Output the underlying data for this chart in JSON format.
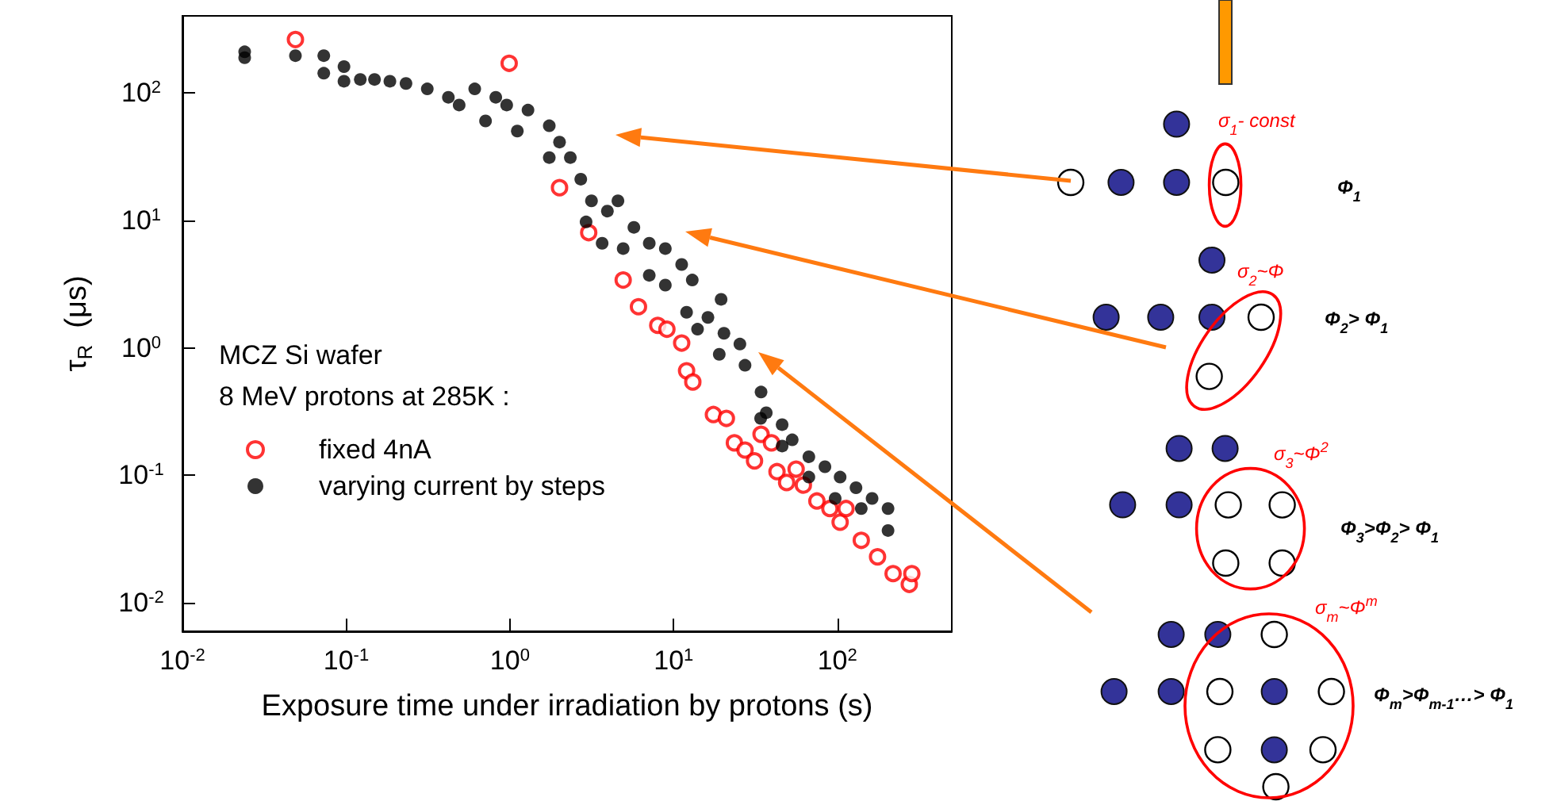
{
  "chart_data": {
    "type": "scatter",
    "xlabel": "Exposure time under irradiation by protons (s)",
    "ylabel": "τ$_{R}$  (μs)",
    "legend_title": "MCZ Si wafer\n8 MeV protons at 285K :",
    "legend": "bottom left",
    "marker": "circle",
    "log": "xy",
    "grid": false,
    "xlim": [
      0.01,
      500
    ],
    "ylim": [
      0.006,
      400
    ],
    "xticks": [
      {
        "value": 0.01,
        "label": "10$^{-2}$"
      },
      {
        "value": 0.1,
        "label": "10$^{-1}$"
      },
      {
        "value": 1,
        "label": "10$^{0}$"
      },
      {
        "value": 10,
        "label": "10$^{1}$"
      },
      {
        "value": 100,
        "label": "10$^{2}$"
      }
    ],
    "yticks": [
      {
        "value": 0.01,
        "label": "10$^{-2}$"
      },
      {
        "value": 0.1,
        "label": "10$^{-1}$"
      },
      {
        "value": 1,
        "label": "10$^{0}$"
      },
      {
        "value": 10,
        "label": "10$^{1}$"
      },
      {
        "value": 100,
        "label": "10$^{2}$"
      }
    ],
    "series": [
      {
        "name": "fixed 4nA",
        "color": "#ff0000",
        "x": [
          0.049,
          0.99,
          2.01,
          3.03,
          4.92,
          6.1,
          8.0,
          9.1,
          11.2,
          12.0,
          13.1,
          17.5,
          21.0,
          23.5,
          27.3,
          31.2,
          34.2,
          39.6,
          42.8,
          49,
          56,
          62,
          75,
          90,
          104,
          113,
          140,
          176,
          219,
          275,
          285
        ],
        "values": [
          261,
          170,
          18,
          8.0,
          3.4,
          2.1,
          1.5,
          1.4,
          1.09,
          0.66,
          0.54,
          0.3,
          0.28,
          0.18,
          0.158,
          0.13,
          0.21,
          0.18,
          0.107,
          0.088,
          0.112,
          0.084,
          0.063,
          0.055,
          0.043,
          0.055,
          0.031,
          0.023,
          0.017,
          0.014,
          0.017
        ]
      },
      {
        "name": "varying current by steps",
        "color": "#000000",
        "x": [
          0.024,
          0.024,
          0.049,
          0.073,
          0.073,
          0.097,
          0.097,
          0.122,
          0.149,
          0.185,
          0.232,
          0.313,
          0.421,
          0.49,
          0.61,
          0.71,
          0.82,
          0.956,
          1.11,
          1.29,
          1.74,
          2.01,
          1.74,
          2.34,
          2.71,
          3.15,
          2.92,
          3.94,
          4.57,
          3.66,
          4.92,
          5.72,
          7.1,
          8.9,
          7.1,
          8.9,
          11.2,
          13.0,
          12.0,
          14,
          16.2,
          19.5,
          20.3,
          19,
          25.4,
          27.3,
          34.2,
          34,
          36.8,
          46,
          46,
          53,
          67,
          67,
          84,
          97,
          104,
          130,
          140,
          163,
          204,
          204
        ],
        "values": [
          209,
          188,
          195,
          195,
          142,
          160,
          123,
          127,
          127,
          123,
          118,
          107,
          92,
          80,
          107,
          60,
          92,
          80,
          50,
          73,
          55,
          41,
          31,
          31,
          21,
          14.2,
          9.7,
          11.8,
          14.2,
          6.6,
          6.0,
          8.8,
          6.6,
          6.0,
          3.7,
          3.1,
          4.5,
          3.4,
          1.9,
          1.4,
          1.73,
          2.4,
          1.3,
          0.89,
          1.07,
          0.73,
          0.45,
          0.28,
          0.31,
          0.25,
          0.17,
          0.19,
          0.14,
          0.097,
          0.117,
          0.066,
          0.097,
          0.08,
          0.055,
          0.066,
          0.055,
          0.037
        ]
      }
    ],
    "annotations": [
      "σ$_{1}$- const",
      "Φ$_{1}$",
      "σ$_{2}$~Φ",
      "Φ$_{2}$> Φ$_{1}$",
      "σ$_{3}$~Φ$^{2}$",
      "Φ$_{3}$>Φ$_{2}$> Φ$_{1}$",
      "σ$_{m}$~Φ$^{m}$",
      "Φ$_{m}$>Φ$_{m-1}$…> Φ$_{1}$"
    ]
  }
}
